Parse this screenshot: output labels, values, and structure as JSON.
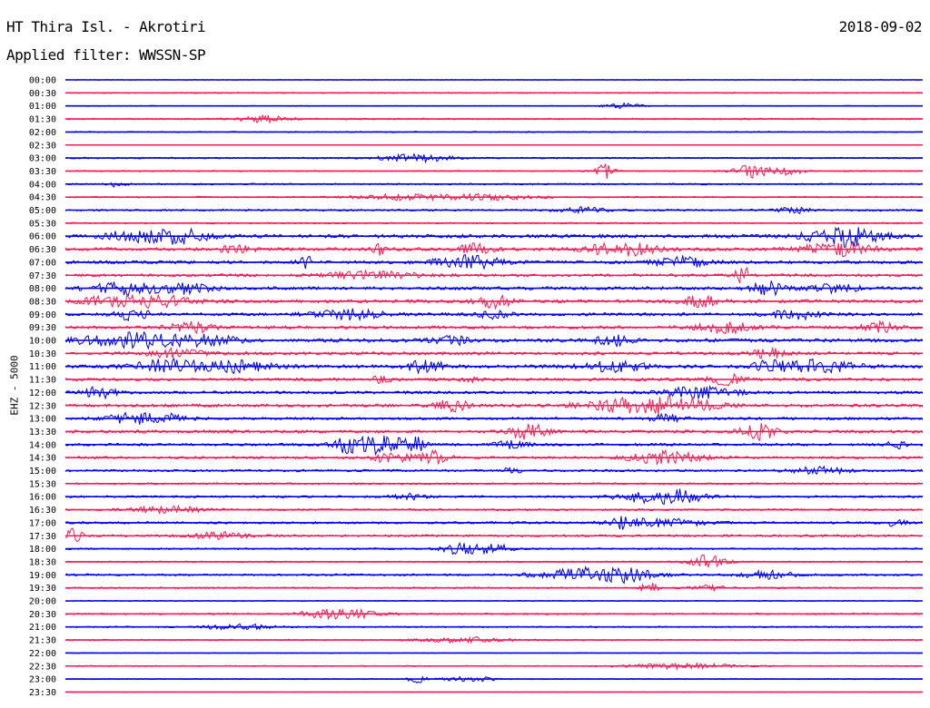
{
  "header": {
    "station": "HT Thira Isl. - Akrotiri",
    "date": "2018-09-02",
    "filter": "Applied filter: WWSSN-SP"
  },
  "channel_label": "EHZ - 5000",
  "colors": {
    "trace_a": "#0000e6",
    "trace_b": "#ff1a55",
    "text": "#000000",
    "background": "#ffffff"
  },
  "chart_data": {
    "type": "line",
    "title": "HT Thira Isl. - Akrotiri",
    "subtitle": "Applied filter: WWSSN-SP",
    "ylabel": "EHZ - 5000",
    "xlabel": "",
    "row_labels": [
      "00:00",
      "00:30",
      "01:00",
      "01:30",
      "02:00",
      "02:30",
      "03:00",
      "03:30",
      "04:00",
      "04:30",
      "05:00",
      "05:30",
      "06:00",
      "06:30",
      "07:00",
      "07:30",
      "08:00",
      "08:30",
      "09:00",
      "09:30",
      "10:00",
      "10:30",
      "11:00",
      "11:30",
      "12:00",
      "12:30",
      "13:00",
      "13:30",
      "14:00",
      "14:30",
      "15:00",
      "15:30",
      "16:00",
      "16:30",
      "17:00",
      "17:30",
      "18:00",
      "18:30",
      "19:00",
      "19:30",
      "20:00",
      "20:30",
      "21:00",
      "21:30",
      "22:00",
      "22:30",
      "23:00",
      "23:30"
    ],
    "row_colors": "alternating blue / red",
    "noise_level": [
      0.6,
      1.2,
      0.8,
      1.5,
      1.2,
      0.5,
      1.4,
      1.3,
      1.5,
      1.4,
      1.8,
      1.5,
      3.5,
      3.2,
      3.0,
      2.8,
      3.2,
      3.2,
      3.0,
      3.0,
      3.5,
      3.0,
      3.2,
      3.0,
      2.8,
      3.0,
      2.6,
      3.0,
      2.6,
      2.4,
      2.2,
      1.8,
      2.0,
      2.0,
      2.2,
      2.3,
      1.6,
      1.4,
      2.0,
      1.6,
      1.0,
      1.6,
      1.4,
      1.3,
      0.8,
      1.1,
      1.0,
      0.5
    ],
    "events": [
      [],
      [],
      [
        [
          0.65,
          3,
          0.02
        ]
      ],
      [
        [
          0.23,
          3.5,
          0.03
        ]
      ],
      [],
      [],
      [
        [
          0.41,
          4,
          0.04
        ]
      ],
      [
        [
          0.63,
          8,
          0.01
        ],
        [
          0.8,
          7,
          0.02
        ],
        [
          0.84,
          4,
          0.02
        ]
      ],
      [
        [
          0.06,
          3,
          0.01
        ]
      ],
      [
        [
          0.4,
          3,
          0.06
        ],
        [
          0.5,
          3,
          0.05
        ]
      ],
      [
        [
          0.6,
          3,
          0.03
        ],
        [
          0.85,
          3,
          0.02
        ]
      ],
      [],
      [
        [
          0.05,
          4,
          0.01
        ],
        [
          0.1,
          6,
          0.04
        ],
        [
          0.14,
          5,
          0.03
        ],
        [
          0.87,
          4,
          0.02
        ],
        [
          0.91,
          10,
          0.02
        ],
        [
          0.94,
          4,
          0.03
        ]
      ],
      [
        [
          0.2,
          4,
          0.02
        ],
        [
          0.37,
          6,
          0.01
        ],
        [
          0.48,
          6,
          0.02
        ],
        [
          0.65,
          7,
          0.04
        ],
        [
          0.9,
          7,
          0.04
        ]
      ],
      [
        [
          0.28,
          7,
          0.01
        ],
        [
          0.47,
          7,
          0.04
        ],
        [
          0.72,
          6,
          0.03
        ]
      ],
      [
        [
          0.36,
          4,
          0.05
        ],
        [
          0.79,
          9,
          0.01
        ]
      ],
      [
        [
          0.07,
          6,
          0.04
        ],
        [
          0.14,
          5,
          0.03
        ],
        [
          0.82,
          7,
          0.02
        ],
        [
          0.9,
          4,
          0.03
        ]
      ],
      [
        [
          0.05,
          5,
          0.03
        ],
        [
          0.11,
          6,
          0.04
        ],
        [
          0.5,
          7,
          0.02
        ],
        [
          0.74,
          6,
          0.02
        ]
      ],
      [
        [
          0.08,
          6,
          0.02
        ],
        [
          0.33,
          5,
          0.04
        ],
        [
          0.5,
          4,
          0.02
        ],
        [
          0.85,
          5,
          0.03
        ]
      ],
      [
        [
          0.15,
          5,
          0.03
        ],
        [
          0.77,
          7,
          0.03
        ],
        [
          0.95,
          5,
          0.02
        ]
      ],
      [
        [
          0.08,
          8,
          0.06
        ],
        [
          0.17,
          5,
          0.03
        ],
        [
          0.45,
          5,
          0.02
        ],
        [
          0.64,
          6,
          0.02
        ]
      ],
      [
        [
          0.13,
          5,
          0.03
        ],
        [
          0.82,
          5,
          0.02
        ]
      ],
      [
        [
          0.12,
          7,
          0.04
        ],
        [
          0.2,
          6,
          0.04
        ],
        [
          0.42,
          7,
          0.02
        ],
        [
          0.64,
          5,
          0.04
        ],
        [
          0.82,
          6,
          0.02
        ],
        [
          0.88,
          7,
          0.04
        ]
      ],
      [
        [
          0.37,
          5,
          0.01
        ],
        [
          0.47,
          4,
          0.01
        ],
        [
          0.77,
          6,
          0.02
        ]
      ],
      [
        [
          0.04,
          6,
          0.02
        ],
        [
          0.74,
          6,
          0.04
        ]
      ],
      [
        [
          0.45,
          6,
          0.02
        ],
        [
          0.65,
          7,
          0.05
        ],
        [
          0.72,
          8,
          0.04
        ]
      ],
      [
        [
          0.08,
          6,
          0.03
        ],
        [
          0.13,
          4,
          0.02
        ],
        [
          0.7,
          4,
          0.02
        ]
      ],
      [
        [
          0.54,
          9,
          0.02
        ],
        [
          0.81,
          9,
          0.02
        ]
      ],
      [
        [
          0.33,
          8,
          0.02
        ],
        [
          0.37,
          10,
          0.03
        ],
        [
          0.41,
          7,
          0.01
        ],
        [
          0.52,
          4,
          0.02
        ],
        [
          0.97,
          6,
          0.01
        ]
      ],
      [
        [
          0.38,
          6,
          0.02
        ],
        [
          0.43,
          7,
          0.02
        ],
        [
          0.7,
          7,
          0.04
        ]
      ],
      [
        [
          0.52,
          4,
          0.01
        ],
        [
          0.88,
          4,
          0.03
        ]
      ],
      [],
      [
        [
          0.4,
          3,
          0.02
        ],
        [
          0.68,
          6,
          0.04
        ],
        [
          0.72,
          5,
          0.03
        ]
      ],
      [
        [
          0.12,
          4,
          0.04
        ]
      ],
      [
        [
          0.65,
          5,
          0.02
        ],
        [
          0.7,
          4,
          0.05
        ],
        [
          0.97,
          5,
          0.01
        ]
      ],
      [
        [
          0.01,
          8,
          0.01
        ],
        [
          0.18,
          4,
          0.03
        ]
      ],
      [
        [
          0.46,
          6,
          0.02
        ],
        [
          0.5,
          5,
          0.02
        ]
      ],
      [
        [
          0.75,
          8,
          0.02
        ]
      ],
      [
        [
          0.6,
          6,
          0.05
        ],
        [
          0.65,
          6,
          0.04
        ],
        [
          0.82,
          4,
          0.03
        ]
      ],
      [
        [
          0.68,
          7,
          0.01
        ],
        [
          0.75,
          3,
          0.02
        ]
      ],
      [],
      [
        [
          0.32,
          6,
          0.04
        ]
      ],
      [
        [
          0.2,
          3,
          0.04
        ]
      ],
      [
        [
          0.47,
          3,
          0.05
        ]
      ],
      [],
      [
        [
          0.72,
          3,
          0.06
        ]
      ],
      [
        [
          0.41,
          4,
          0.01
        ],
        [
          0.47,
          3,
          0.03
        ]
      ],
      []
    ]
  }
}
